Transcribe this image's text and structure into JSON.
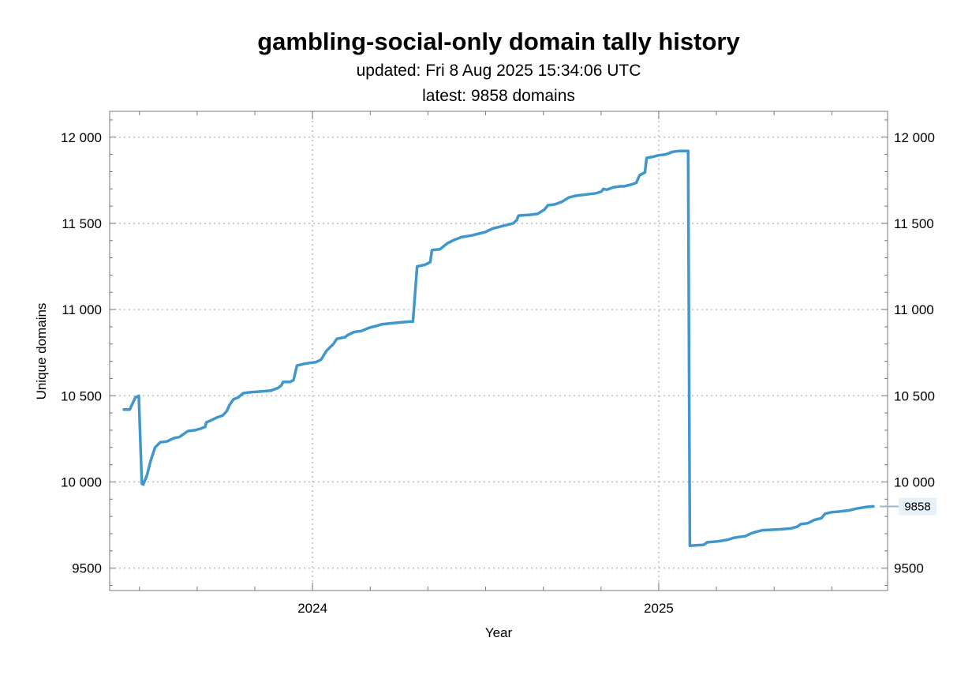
{
  "chart_data": {
    "type": "line",
    "title": "gambling-social-only domain tally history",
    "subtitle_lines": [
      "updated: Fri 8 Aug 2025 15:34:06 UTC",
      "latest: 9858 domains"
    ],
    "xlabel": "Year",
    "ylabel": "Unique domains",
    "xlim": [
      2023.414,
      2025.661
    ],
    "ylim": [
      9370,
      12150
    ],
    "y_ticks": [
      {
        "value": 9500,
        "label": "9500"
      },
      {
        "value": 10000,
        "label": "10 000"
      },
      {
        "value": 10500,
        "label": "10 500"
      },
      {
        "value": 11000,
        "label": "11 000"
      },
      {
        "value": 11500,
        "label": "11 500"
      },
      {
        "value": 12000,
        "label": "12 000"
      }
    ],
    "x_ticks": [
      {
        "value": 2024,
        "label": "2024"
      },
      {
        "value": 2025,
        "label": "2025"
      }
    ],
    "grid": true,
    "line_color": "#3f97cc",
    "callout": {
      "value": 9858,
      "label": "9858"
    },
    "series": [
      {
        "values": [
          [
            2023.455,
            10420
          ],
          [
            2023.472,
            10420
          ],
          [
            2023.488,
            10490
          ],
          [
            2023.498,
            10500
          ],
          [
            2023.507,
            9990
          ],
          [
            2023.511,
            9985
          ],
          [
            2023.522,
            10040
          ],
          [
            2023.532,
            10120
          ],
          [
            2023.545,
            10200
          ],
          [
            2023.56,
            10230
          ],
          [
            2023.58,
            10235
          ],
          [
            2023.6,
            10255
          ],
          [
            2023.615,
            10260
          ],
          [
            2023.64,
            10295
          ],
          [
            2023.66,
            10300
          ],
          [
            2023.678,
            10310
          ],
          [
            2023.69,
            10320
          ],
          [
            2023.693,
            10345
          ],
          [
            2023.71,
            10360
          ],
          [
            2023.725,
            10375
          ],
          [
            2023.74,
            10385
          ],
          [
            2023.752,
            10410
          ],
          [
            2023.76,
            10445
          ],
          [
            2023.772,
            10480
          ],
          [
            2023.785,
            10490
          ],
          [
            2023.8,
            10515
          ],
          [
            2023.82,
            10520
          ],
          [
            2023.855,
            10525
          ],
          [
            2023.88,
            10530
          ],
          [
            2023.9,
            10545
          ],
          [
            2023.91,
            10560
          ],
          [
            2023.915,
            10580
          ],
          [
            2023.935,
            10580
          ],
          [
            2023.945,
            10590
          ],
          [
            2023.955,
            10675
          ],
          [
            2023.975,
            10685
          ],
          [
            2023.99,
            10690
          ],
          [
            2024.01,
            10695
          ],
          [
            2024.025,
            10710
          ],
          [
            2024.04,
            10760
          ],
          [
            2024.06,
            10800
          ],
          [
            2024.07,
            10830
          ],
          [
            2024.095,
            10840
          ],
          [
            2024.1,
            10850
          ],
          [
            2024.12,
            10870
          ],
          [
            2024.14,
            10875
          ],
          [
            2024.165,
            10895
          ],
          [
            2024.185,
            10905
          ],
          [
            2024.2,
            10915
          ],
          [
            2024.225,
            10920
          ],
          [
            2024.25,
            10925
          ],
          [
            2024.28,
            10930
          ],
          [
            2024.29,
            10930
          ],
          [
            2024.302,
            11250
          ],
          [
            2024.325,
            11260
          ],
          [
            2024.34,
            11275
          ],
          [
            2024.345,
            11345
          ],
          [
            2024.368,
            11350
          ],
          [
            2024.39,
            11385
          ],
          [
            2024.41,
            11405
          ],
          [
            2024.43,
            11420
          ],
          [
            2024.46,
            11430
          ],
          [
            2024.48,
            11440
          ],
          [
            2024.5,
            11450
          ],
          [
            2024.52,
            11470
          ],
          [
            2024.54,
            11480
          ],
          [
            2024.56,
            11490
          ],
          [
            2024.58,
            11500
          ],
          [
            2024.59,
            11520
          ],
          [
            2024.595,
            11545
          ],
          [
            2024.63,
            11550
          ],
          [
            2024.65,
            11555
          ],
          [
            2024.67,
            11580
          ],
          [
            2024.68,
            11605
          ],
          [
            2024.7,
            11610
          ],
          [
            2024.72,
            11625
          ],
          [
            2024.74,
            11650
          ],
          [
            2024.76,
            11660
          ],
          [
            2024.78,
            11665
          ],
          [
            2024.8,
            11670
          ],
          [
            2024.82,
            11675
          ],
          [
            2024.835,
            11685
          ],
          [
            2024.84,
            11700
          ],
          [
            2024.85,
            11695
          ],
          [
            2024.87,
            11710
          ],
          [
            2024.89,
            11715
          ],
          [
            2024.9,
            11715
          ],
          [
            2024.92,
            11725
          ],
          [
            2024.935,
            11735
          ],
          [
            2024.945,
            11780
          ],
          [
            2024.96,
            11795
          ],
          [
            2024.965,
            11880
          ],
          [
            2024.98,
            11885
          ],
          [
            2025.0,
            11895
          ],
          [
            2025.02,
            11900
          ],
          [
            2025.04,
            11915
          ],
          [
            2025.06,
            11920
          ],
          [
            2025.085,
            11920
          ],
          [
            2025.09,
            9630
          ],
          [
            2025.13,
            9635
          ],
          [
            2025.14,
            9650
          ],
          [
            2025.17,
            9655
          ],
          [
            2025.2,
            9665
          ],
          [
            2025.215,
            9675
          ],
          [
            2025.23,
            9680
          ],
          [
            2025.25,
            9685
          ],
          [
            2025.265,
            9700
          ],
          [
            2025.28,
            9710
          ],
          [
            2025.3,
            9720
          ],
          [
            2025.35,
            9725
          ],
          [
            2025.38,
            9730
          ],
          [
            2025.4,
            9740
          ],
          [
            2025.41,
            9755
          ],
          [
            2025.43,
            9760
          ],
          [
            2025.45,
            9780
          ],
          [
            2025.47,
            9790
          ],
          [
            2025.48,
            9815
          ],
          [
            2025.5,
            9825
          ],
          [
            2025.52,
            9828
          ],
          [
            2025.55,
            9835
          ],
          [
            2025.57,
            9845
          ],
          [
            2025.6,
            9855
          ],
          [
            2025.62,
            9858
          ]
        ]
      }
    ]
  }
}
